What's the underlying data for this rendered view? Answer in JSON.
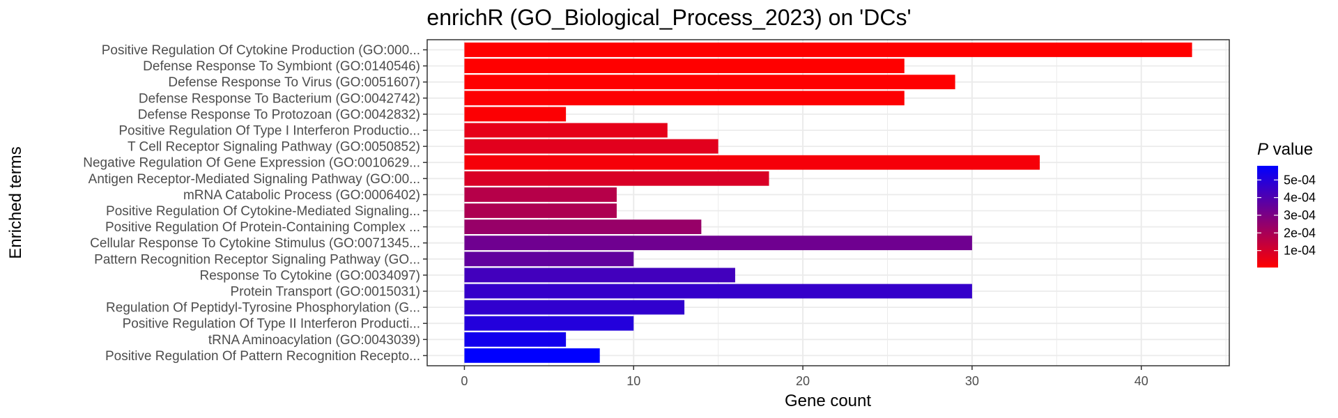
{
  "chart_data": {
    "type": "bar",
    "orientation": "horizontal",
    "title": "enrichR (GO_Biological_Process_2023) on 'DCs'",
    "xlabel": "Gene count",
    "ylabel": "Enriched terms",
    "xlim": [
      -2.2,
      45.2
    ],
    "xticks": [
      0,
      10,
      20,
      30,
      40
    ],
    "grid": true,
    "legend_position": "right",
    "legend": {
      "title_italic": "P",
      "title_rest": " value",
      "tick_values": [
        0.0001,
        0.0002,
        0.0003,
        0.0004,
        0.0005
      ],
      "tick_labels": [
        "1e-04",
        "2e-04",
        "3e-04",
        "4e-04",
        "5e-04"
      ],
      "range": [
        4e-06,
        0.00058
      ],
      "color_low": "#ff0000",
      "color_high": "#0000ff"
    },
    "categories": [
      "Positive Regulation Of Cytokine Production (GO:000...",
      "Defense Response To Symbiont (GO:0140546)",
      "Defense Response To Virus (GO:0051607)",
      "Defense Response To Bacterium (GO:0042742)",
      "Defense Response To Protozoan (GO:0042832)",
      "Positive Regulation Of Type I Interferon Productio...",
      "T Cell Receptor Signaling Pathway (GO:0050852)",
      "Negative Regulation Of Gene Expression (GO:0010629...",
      "Antigen Receptor-Mediated Signaling Pathway (GO:00...",
      "mRNA Catabolic Process (GO:0006402)",
      "Positive Regulation Of Cytokine-Mediated Signaling...",
      "Positive Regulation Of Protein-Containing Complex ...",
      "Cellular Response To Cytokine Stimulus (GO:0071345...",
      "Pattern Recognition Receptor Signaling Pathway (GO...",
      "Response To Cytokine (GO:0034097)",
      "Protein Transport (GO:0015031)",
      "Regulation Of Peptidyl-Tyrosine Phosphorylation (G...",
      "Positive Regulation Of Type II Interferon Producti...",
      "tRNA Aminoacylation (GO:0043039)",
      "Positive Regulation Of Pattern Recognition Recepto..."
    ],
    "values": [
      43,
      26,
      29,
      26,
      6,
      12,
      15,
      34,
      18,
      9,
      9,
      14,
      30,
      10,
      16,
      30,
      13,
      10,
      6,
      8
    ],
    "p_values": [
      4e-06,
      5e-06,
      6e-06,
      8e-06,
      1e-05,
      6e-05,
      7e-05,
      2.5e-05,
      9e-05,
      0.00017,
      0.00019,
      0.00024,
      0.00033,
      0.00036,
      0.00043,
      0.00046,
      0.00047,
      0.0005,
      0.00054,
      0.00058
    ]
  }
}
